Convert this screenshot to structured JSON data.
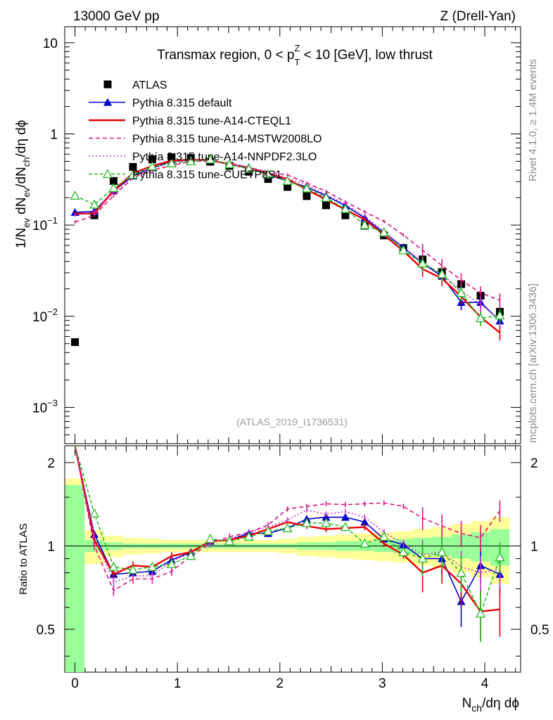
{
  "header": {
    "left": "13000 GeV pp",
    "right": "Z (Drell-Yan)"
  },
  "side": {
    "rivet": "Rivet 4.1.0, ≥ 1.4M events",
    "mcplots": "mcplots.cern.ch [arXiv:1306.3436]"
  },
  "watermark": "(ATLAS_2019_I1736531)",
  "chart_data": {
    "type": "scatter",
    "title": "Transmax region, 0 < p_T^Z < 10 [GeV], low thrust",
    "title_parts": {
      "a": "Transmax region, 0 < p",
      "sup": "Z",
      "sub": "T",
      "b": " < 10 [GeV], low thrust"
    },
    "xlabel": "N_ch/dη dϕ",
    "xlabel_parts": {
      "a": "N",
      "sub": "ch",
      "b": "/dη dϕ"
    },
    "ylabel": "1/N_ev dN_ev/dN_ch/dη dϕ",
    "ylabel_parts": {
      "a": "1/N",
      "s1": "ev",
      "b": " dN",
      "s2": "ev",
      "c": "/dN",
      "s3": "ch",
      "d": "/dη dϕ"
    },
    "ratio_ylabel": "Ratio to ATLAS",
    "xlim": [
      -0.1,
      4.35
    ],
    "ylim": [
      0.0004,
      15
    ],
    "ratio_ylim": [
      0.35,
      2.3
    ],
    "x_ticks": [
      "0",
      "1",
      "2",
      "3",
      "4"
    ],
    "y_ticks": [
      {
        "v": 10,
        "label": "10"
      },
      {
        "v": 1,
        "label": "1"
      },
      {
        "v": 0.1,
        "base": "10",
        "exp": "−1"
      },
      {
        "v": 0.01,
        "base": "10",
        "exp": "−2"
      },
      {
        "v": 0.001,
        "base": "10",
        "exp": "−3"
      }
    ],
    "ratio_ticks": [
      "0.5",
      "1",
      "2"
    ],
    "x": [
      0.0,
      0.189,
      0.377,
      0.566,
      0.754,
      0.943,
      1.131,
      1.32,
      1.508,
      1.697,
      1.885,
      2.074,
      2.262,
      2.451,
      2.639,
      2.828,
      3.016,
      3.205,
      3.393,
      3.582,
      3.77,
      3.959,
      4.147
    ],
    "series": [
      {
        "name": "ATLAS",
        "color": "#000000",
        "dash": "",
        "marker": "square",
        "values": [
          0.0052,
          0.128,
          0.305,
          0.435,
          0.525,
          0.555,
          0.545,
          0.495,
          0.445,
          0.385,
          0.32,
          0.262,
          0.208,
          0.165,
          0.128,
          0.0985,
          0.077,
          0.056,
          0.042,
          0.0305,
          0.0225,
          0.0168,
          0.0112
        ]
      },
      {
        "name": "Pythia 8.315 default",
        "color": "#0000cc",
        "dash": "",
        "marker": "triangle",
        "values": [
          0.138,
          0.141,
          0.238,
          0.345,
          0.425,
          0.5,
          0.52,
          0.518,
          0.468,
          0.43,
          0.355,
          0.305,
          0.262,
          0.21,
          0.163,
          0.12,
          0.082,
          0.057,
          0.038,
          0.0275,
          0.0142,
          0.0142,
          0.0089
        ]
      },
      {
        "name": "Pythia 8.315 tune-A14-CTEQL1",
        "color": "#ee0000",
        "dash": "",
        "marker": "",
        "values": [
          0.134,
          0.134,
          0.24,
          0.37,
          0.445,
          0.51,
          0.52,
          0.515,
          0.465,
          0.42,
          0.37,
          0.32,
          0.245,
          0.19,
          0.148,
          0.115,
          0.078,
          0.052,
          0.033,
          0.026,
          0.0165,
          0.0098,
          0.0066
        ]
      },
      {
        "name": "Pythia 8.315 tune-A14-MSTW2008LO",
        "color": "#e0117f",
        "dash": "6,4",
        "marker": "",
        "values": [
          0.108,
          0.128,
          0.21,
          0.33,
          0.4,
          0.45,
          0.5,
          0.505,
          0.48,
          0.43,
          0.38,
          0.355,
          0.29,
          0.235,
          0.18,
          0.14,
          0.11,
          0.078,
          0.053,
          0.036,
          0.025,
          0.018,
          0.015
        ]
      },
      {
        "name": "Pythia 8.315 tune-A14-NNPDF2.3LO",
        "color": "#cc33cc",
        "dash": "2,3",
        "marker": "",
        "values": [
          0.128,
          0.14,
          0.225,
          0.34,
          0.41,
          0.49,
          0.51,
          0.51,
          0.47,
          0.43,
          0.375,
          0.325,
          0.28,
          0.215,
          0.17,
          0.125,
          0.086,
          0.057,
          0.039,
          0.029,
          0.019,
          0.0135,
          0.0092
        ]
      },
      {
        "name": "Pythia 8.315 tune-CUETP8S1",
        "color": "#22bb22",
        "dash": "5,3",
        "marker": "triangle-open",
        "values": [
          0.21,
          0.168,
          0.255,
          0.355,
          0.44,
          0.475,
          0.5,
          0.525,
          0.465,
          0.415,
          0.36,
          0.305,
          0.252,
          0.2,
          0.15,
          0.1,
          0.083,
          0.053,
          0.038,
          0.029,
          0.018,
          0.0095,
          0.0102
        ]
      }
    ],
    "ratio_series": [
      {
        "name": "Pythia 8.315 default",
        "values": [
          null,
          1.1,
          0.79,
          0.8,
          0.81,
          0.89,
          0.95,
          1.04,
          1.05,
          1.11,
          1.11,
          1.16,
          1.25,
          1.27,
          1.27,
          1.22,
          1.06,
          1.01,
          0.9,
          0.9,
          0.63,
          0.85,
          0.79
        ]
      },
      {
        "name": "Pythia 8.315 tune-A14-CTEQL1",
        "values": [
          null,
          1.05,
          0.79,
          0.85,
          0.84,
          0.92,
          0.95,
          1.04,
          1.05,
          1.09,
          1.15,
          1.22,
          1.18,
          1.15,
          1.16,
          1.17,
          1.02,
          0.93,
          0.8,
          0.85,
          0.73,
          0.58,
          0.59
        ]
      },
      {
        "name": "Pythia 8.315 tune-A14-MSTW2008LO",
        "values": [
          null,
          1.0,
          0.69,
          0.76,
          0.76,
          0.81,
          0.92,
          1.02,
          1.08,
          1.12,
          1.19,
          1.36,
          1.39,
          1.42,
          1.41,
          1.42,
          1.43,
          1.39,
          1.26,
          1.18,
          1.11,
          1.07,
          1.34
        ]
      },
      {
        "name": "Pythia 8.315 tune-A14-NNPDF2.3LO",
        "values": [
          null,
          1.09,
          0.74,
          0.78,
          0.78,
          0.88,
          0.94,
          1.03,
          1.06,
          1.12,
          1.17,
          1.24,
          1.35,
          1.3,
          1.33,
          1.27,
          1.12,
          1.02,
          0.93,
          0.95,
          0.84,
          0.8,
          0.82
        ]
      },
      {
        "name": "Pythia 8.315 tune-CUETP8S1",
        "values": [
          null,
          1.31,
          0.84,
          0.82,
          0.84,
          0.86,
          0.92,
          1.06,
          1.04,
          1.08,
          1.13,
          1.16,
          1.21,
          1.21,
          1.17,
          1.02,
          1.08,
          0.95,
          0.9,
          0.95,
          0.8,
          0.57,
          0.91
        ]
      }
    ],
    "bands": {
      "stat": [
        0.66,
        0.05,
        0.03,
        0.02,
        0.02,
        0.02,
        0.02,
        0.02,
        0.02,
        0.02,
        0.02,
        0.02,
        0.03,
        0.03,
        0.04,
        0.04,
        0.05,
        0.06,
        0.07,
        0.08,
        0.1,
        0.12,
        0.15
      ],
      "total": [
        0.75,
        0.14,
        0.09,
        0.07,
        0.06,
        0.05,
        0.05,
        0.05,
        0.05,
        0.05,
        0.05,
        0.06,
        0.08,
        0.09,
        0.1,
        0.11,
        0.12,
        0.13,
        0.15,
        0.17,
        0.2,
        0.23,
        0.27
      ]
    }
  }
}
